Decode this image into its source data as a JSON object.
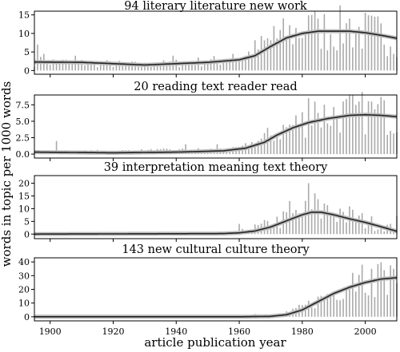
{
  "chart_data": [
    {
      "type": "bar",
      "title": "94 literary literature new work",
      "ylim": [
        -1,
        16
      ],
      "yticks": [
        0,
        5,
        10,
        15
      ],
      "ytick_labels": [
        "0",
        "5",
        "10",
        "15"
      ],
      "smooth": [
        [
          1895,
          2.3
        ],
        [
          1910,
          2.2
        ],
        [
          1930,
          1.5
        ],
        [
          1950,
          2.2
        ],
        [
          1960,
          2.9
        ],
        [
          1965,
          4.0
        ],
        [
          1970,
          6.5
        ],
        [
          1975,
          8.8
        ],
        [
          1980,
          10.0
        ],
        [
          1985,
          10.6
        ],
        [
          1990,
          10.6
        ],
        [
          1995,
          10.6
        ],
        [
          2000,
          10.2
        ],
        [
          2005,
          9.5
        ],
        [
          2010,
          8.7
        ]
      ],
      "bar_hint": [
        [
          1895,
          2.5
        ],
        [
          1930,
          1.5
        ],
        [
          1960,
          3
        ],
        [
          1970,
          8
        ],
        [
          1980,
          11
        ],
        [
          1995,
          11
        ],
        [
          2010,
          9
        ]
      ],
      "bar_noise": 0.6,
      "spikes": [
        [
          1896,
          7.0
        ],
        [
          1898,
          4.5
        ],
        [
          1908,
          4.0
        ],
        [
          1939,
          4.0
        ],
        [
          1958,
          4.5
        ],
        [
          1962,
          4.0
        ],
        [
          1971,
          12.0
        ],
        [
          1983,
          15.0
        ],
        [
          1985,
          14.0
        ],
        [
          1995,
          14.0
        ]
      ]
    },
    {
      "type": "bar",
      "title": "20 reading text reader read",
      "ylim": [
        -0.6,
        9
      ],
      "yticks": [
        0,
        2.5,
        5,
        7.5
      ],
      "ytick_labels": [
        "0.0",
        "2.5",
        "5.0",
        "7.5"
      ],
      "smooth": [
        [
          1895,
          0.3
        ],
        [
          1920,
          0.2
        ],
        [
          1940,
          0.3
        ],
        [
          1955,
          0.5
        ],
        [
          1962,
          0.9
        ],
        [
          1968,
          1.8
        ],
        [
          1972,
          2.9
        ],
        [
          1977,
          4.0
        ],
        [
          1982,
          4.8
        ],
        [
          1988,
          5.4
        ],
        [
          1995,
          5.9
        ],
        [
          2000,
          6.0
        ],
        [
          2005,
          5.9
        ],
        [
          2010,
          5.7
        ]
      ],
      "bar_hint": [
        [
          1895,
          0.3
        ],
        [
          1960,
          0.7
        ],
        [
          1975,
          4
        ],
        [
          1985,
          6
        ],
        [
          2000,
          6.3
        ],
        [
          2010,
          5.8
        ]
      ],
      "bar_noise": 0.55,
      "spikes": [
        [
          1902,
          2.0
        ],
        [
          1943,
          1.5
        ],
        [
          1953,
          1.5
        ],
        [
          1982,
          8.5
        ],
        [
          1984,
          8.0
        ],
        [
          1998,
          8.0
        ],
        [
          2002,
          8.0
        ],
        [
          2006,
          8.2
        ]
      ]
    },
    {
      "type": "bar",
      "title": "39 interpretation meaning text theory",
      "ylim": [
        -1.8,
        23
      ],
      "yticks": [
        0,
        5,
        10,
        15,
        20
      ],
      "ytick_labels": [
        "0",
        "5",
        "10",
        "15",
        "20"
      ],
      "smooth": [
        [
          1895,
          0.0
        ],
        [
          1955,
          0.2
        ],
        [
          1960,
          0.5
        ],
        [
          1965,
          1.2
        ],
        [
          1970,
          2.8
        ],
        [
          1975,
          5.2
        ],
        [
          1980,
          7.6
        ],
        [
          1983,
          8.6
        ],
        [
          1986,
          8.6
        ],
        [
          1990,
          7.6
        ],
        [
          1995,
          6.0
        ],
        [
          2000,
          4.6
        ],
        [
          2005,
          2.9
        ],
        [
          2010,
          1.1
        ]
      ],
      "bar_hint": [
        [
          1895,
          0
        ],
        [
          1958,
          0.3
        ],
        [
          1970,
          4
        ],
        [
          1982,
          9
        ],
        [
          1990,
          9
        ],
        [
          2000,
          5
        ],
        [
          2010,
          2
        ]
      ],
      "bar_noise": 0.7,
      "spikes": [
        [
          1960,
          4.0
        ],
        [
          1976,
          13.0
        ],
        [
          1982,
          20.0
        ],
        [
          1984,
          16.0
        ],
        [
          1987,
          12.0
        ],
        [
          1992,
          10.0
        ],
        [
          2010,
          7.0
        ]
      ]
    },
    {
      "type": "bar",
      "title": "143 new cultural culture theory",
      "ylim": [
        -3,
        43
      ],
      "yticks": [
        0,
        10,
        20,
        30,
        40
      ],
      "ytick_labels": [
        "0",
        "10",
        "20",
        "30",
        "40"
      ],
      "smooth": [
        [
          1895,
          0.0
        ],
        [
          1960,
          0.0
        ],
        [
          1970,
          0.3
        ],
        [
          1975,
          1.5
        ],
        [
          1980,
          5.0
        ],
        [
          1985,
          11.0
        ],
        [
          1990,
          17.0
        ],
        [
          1995,
          21.5
        ],
        [
          2000,
          25.0
        ],
        [
          2005,
          27.5
        ],
        [
          2010,
          28.5
        ]
      ],
      "bar_hint": [
        [
          1895,
          0
        ],
        [
          1965,
          0
        ],
        [
          1975,
          2
        ],
        [
          1985,
          12
        ],
        [
          1995,
          25
        ],
        [
          2000,
          28
        ],
        [
          2010,
          30
        ]
      ],
      "bar_noise": 0.5,
      "spikes": [
        [
          1965,
          2.0
        ],
        [
          1975,
          4.0
        ],
        [
          1996,
          32.0
        ],
        [
          1999,
          38.0
        ],
        [
          2002,
          35.0
        ],
        [
          2006,
          34.0
        ],
        [
          2009,
          35.0
        ]
      ]
    }
  ],
  "x_axis": {
    "label": "article publication year",
    "range": [
      1895,
      2010
    ],
    "ticks": [
      1900,
      1920,
      1940,
      1960,
      1980,
      2000
    ],
    "tick_labels": [
      "1900",
      "1920",
      "1940",
      "1960",
      "1980",
      "2000"
    ]
  },
  "y_axis": {
    "label": "words in topic per 1000 words"
  },
  "colors": {
    "bars": "#aaaaaa",
    "line": "#222222",
    "ribbon": "#bbbbbb",
    "frame": "#000000",
    "background": "#ffffff"
  }
}
